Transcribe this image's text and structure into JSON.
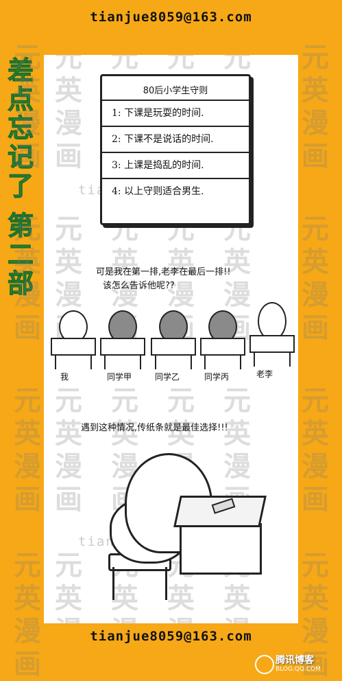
{
  "email": "tianjue8059@163.com",
  "title_chars": [
    "差",
    "点",
    "忘",
    "记",
    "了",
    "第",
    "二",
    "部"
  ],
  "watermark": {
    "chars": [
      "元",
      "英",
      "漫",
      "画"
    ],
    "url": "tianjue8059@163.com"
  },
  "rules_board": {
    "title": "80后小学生守则",
    "rules": [
      "1: 下课是玩耍的时间.",
      "2: 下课不是说话的时间.",
      "3: 上课是捣乱的时间.",
      "4: 以上守则适合男生."
    ]
  },
  "scene2": {
    "caption_line1": "可是我在第一排,老李在最后一排!!",
    "caption_line2": "该怎么告诉他呢??",
    "labels": [
      "我",
      "同学甲",
      "同学乙",
      "同学丙",
      "老李"
    ]
  },
  "scene3": {
    "caption": "遇到这种情况,传纸条就是最佳选择!!!"
  },
  "logo": {
    "name": "腾讯博客",
    "sub": "BLOG.QQ.COM"
  }
}
